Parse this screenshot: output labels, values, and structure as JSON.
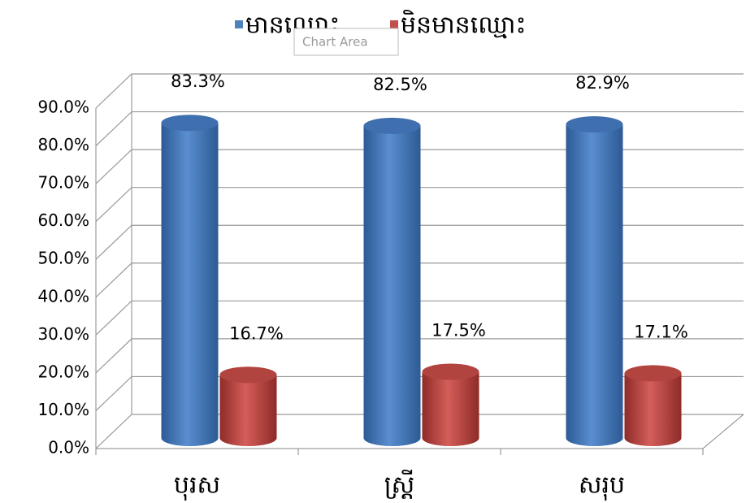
{
  "chart_data": {
    "type": "bar3d",
    "categories": [
      "បុរស",
      "ស្ត្រី",
      "សរុប"
    ],
    "series": [
      {
        "name": "មានឈ្មោះ",
        "color": "#4f81bd",
        "values": [
          83.3,
          82.5,
          82.9
        ],
        "value_labels": [
          "83.3%",
          "82.5%",
          "82.9%"
        ]
      },
      {
        "name": "មិនមានឈ្មោះ",
        "color": "#c0504d",
        "values": [
          16.7,
          17.5,
          17.1
        ],
        "value_labels": [
          "16.7%",
          "17.5%",
          "17.1%"
        ]
      }
    ],
    "ylim": [
      0,
      90
    ],
    "yticks": [
      {
        "value": 0,
        "label": "0.0%"
      },
      {
        "value": 10,
        "label": "10.0%"
      },
      {
        "value": 20,
        "label": "20.0%"
      },
      {
        "value": 30,
        "label": "30.0%"
      },
      {
        "value": 40,
        "label": "40.0%"
      },
      {
        "value": 50,
        "label": "50.0%"
      },
      {
        "value": 60,
        "label": "60.0%"
      },
      {
        "value": 70,
        "label": "70.0%"
      },
      {
        "value": 80,
        "label": "80.0%"
      },
      {
        "value": 90,
        "label": "90.0%"
      }
    ],
    "grid": true,
    "legend": "top",
    "tooltip": "Chart Area"
  }
}
